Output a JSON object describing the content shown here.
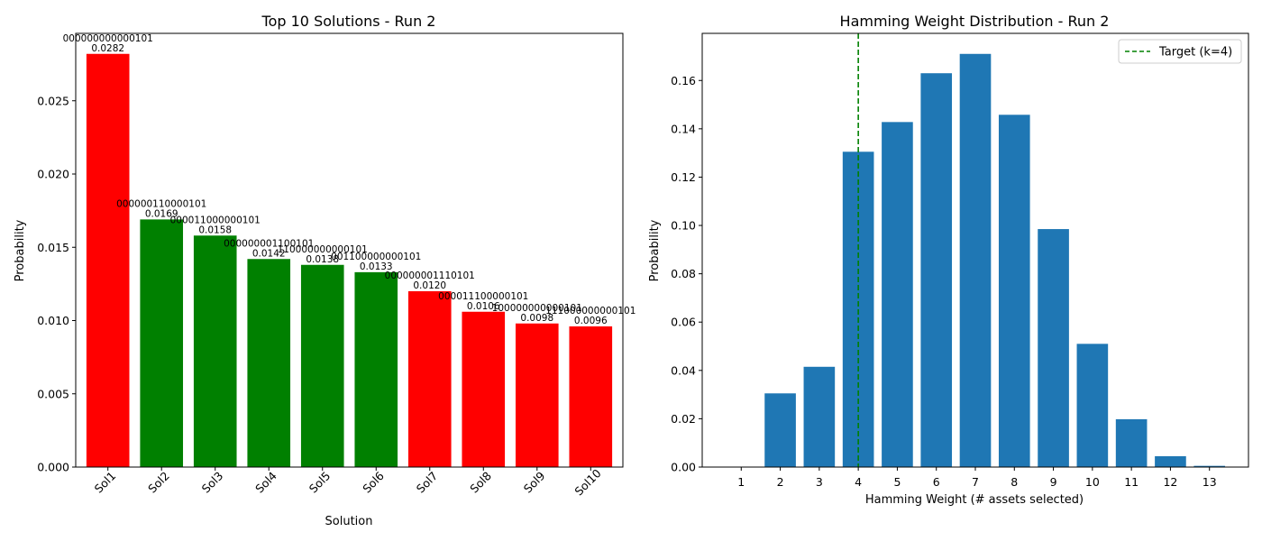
{
  "chart_data": [
    {
      "type": "bar",
      "title": "Top 10 Solutions - Run 2",
      "xlabel": "Solution",
      "ylabel": "Probability",
      "ylim": [
        0,
        0.0296
      ],
      "yticks": [
        "0.000",
        "0.005",
        "0.010",
        "0.015",
        "0.020",
        "0.025"
      ],
      "categories": [
        "Sol1",
        "Sol2",
        "Sol3",
        "Sol4",
        "Sol5",
        "Sol6",
        "Sol7",
        "Sol8",
        "Sol9",
        "Sol10"
      ],
      "values": [
        0.0282,
        0.0169,
        0.0158,
        0.0142,
        0.0138,
        0.0133,
        0.012,
        0.0106,
        0.0098,
        0.0096
      ],
      "value_labels": [
        "0.0282",
        "0.0169",
        "0.0158",
        "0.0142",
        "0.0138",
        "0.0133",
        "0.0120",
        "0.0106",
        "0.0098",
        "0.0096"
      ],
      "bitstrings": [
        "000000000000101",
        "000000110000101",
        "000011000000101",
        "000000001100101",
        "110000000000101",
        "001100000000101",
        "000000001110101",
        "000011100000101",
        "100000000000101",
        "111000000000101"
      ],
      "bar_colors": [
        "#ff0000",
        "#008000",
        "#008000",
        "#008000",
        "#008000",
        "#008000",
        "#ff0000",
        "#ff0000",
        "#ff0000",
        "#ff0000"
      ],
      "grid": false
    },
    {
      "type": "bar",
      "title": "Hamming Weight Distribution - Run 2",
      "xlabel": "Hamming Weight (# assets selected)",
      "ylabel": "Probability",
      "ylim": [
        0,
        0.1795
      ],
      "yticks": [
        "0.00",
        "0.02",
        "0.04",
        "0.06",
        "0.08",
        "0.10",
        "0.12",
        "0.14",
        "0.16"
      ],
      "categories": [
        "1",
        "2",
        "3",
        "4",
        "5",
        "6",
        "7",
        "8",
        "9",
        "10",
        "11",
        "12",
        "13"
      ],
      "values": [
        0.0,
        0.0305,
        0.0415,
        0.1305,
        0.1428,
        0.163,
        0.171,
        0.1458,
        0.0985,
        0.051,
        0.0198,
        0.0045,
        0.0005
      ],
      "bar_color": "#1f77b4",
      "target_line": {
        "x": 4,
        "label": "Target (k=4)",
        "color": "#008000",
        "style": "dashed"
      },
      "legend": "top-right",
      "grid": false
    }
  ]
}
